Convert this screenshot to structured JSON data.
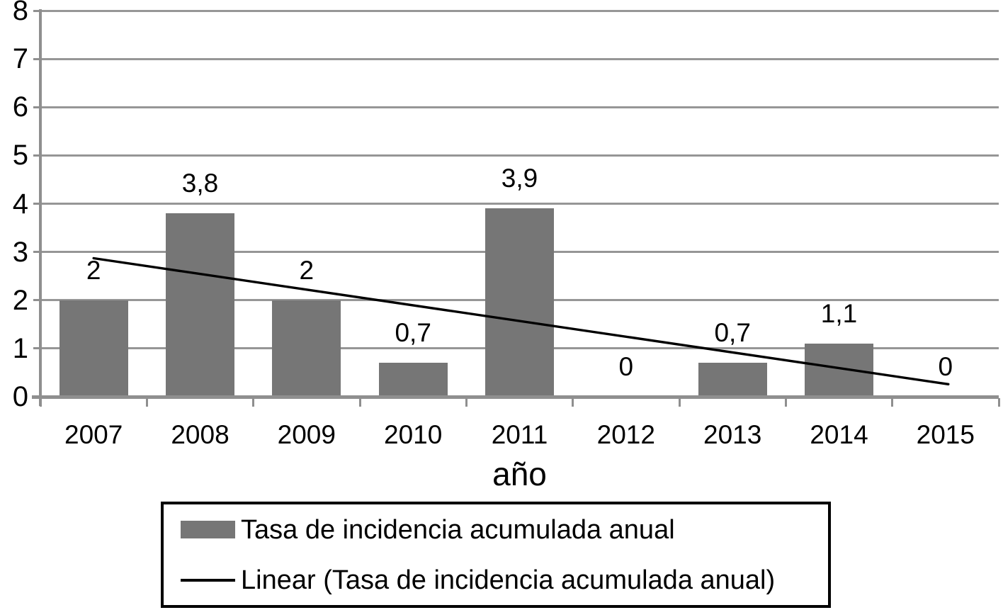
{
  "chart_data": {
    "type": "bar",
    "categories": [
      "2007",
      "2008",
      "2009",
      "2010",
      "2011",
      "2012",
      "2013",
      "2014",
      "2015"
    ],
    "series": [
      {
        "name": "Tasa de incidencia acumulada anual",
        "type": "bar",
        "values": [
          2,
          3.8,
          2,
          0.7,
          3.9,
          0,
          0.7,
          1.1,
          0
        ],
        "data_labels": [
          "2",
          "3,8",
          "2",
          "0,7",
          "3,9",
          "0",
          "0,7",
          "1,1",
          "0"
        ]
      },
      {
        "name": "Linear (Tasa de incidencia acumulada anual)",
        "type": "line",
        "trend_start_value": 2.87,
        "trend_end_value": 0.26
      }
    ],
    "title": "",
    "xlabel": "año",
    "ylabel": "",
    "ylim": [
      0,
      8
    ],
    "ytick_labels": [
      "0",
      "1",
      "2",
      "3",
      "4",
      "5",
      "6",
      "7",
      "8"
    ],
    "grid": true,
    "legend_position": "bottom",
    "colors": {
      "bar": "#767676",
      "grid": "#969696",
      "axis": "#8f8f8f",
      "trend_line": "#000000",
      "text": "#000000",
      "legend_border": "#000000"
    }
  },
  "legend": {
    "items": [
      {
        "label": "Tasa de incidencia acumulada anual",
        "swatch": "bar-swatch"
      },
      {
        "label": "Linear (Tasa de incidencia acumulada anual)",
        "swatch": "line-swatch"
      }
    ]
  }
}
